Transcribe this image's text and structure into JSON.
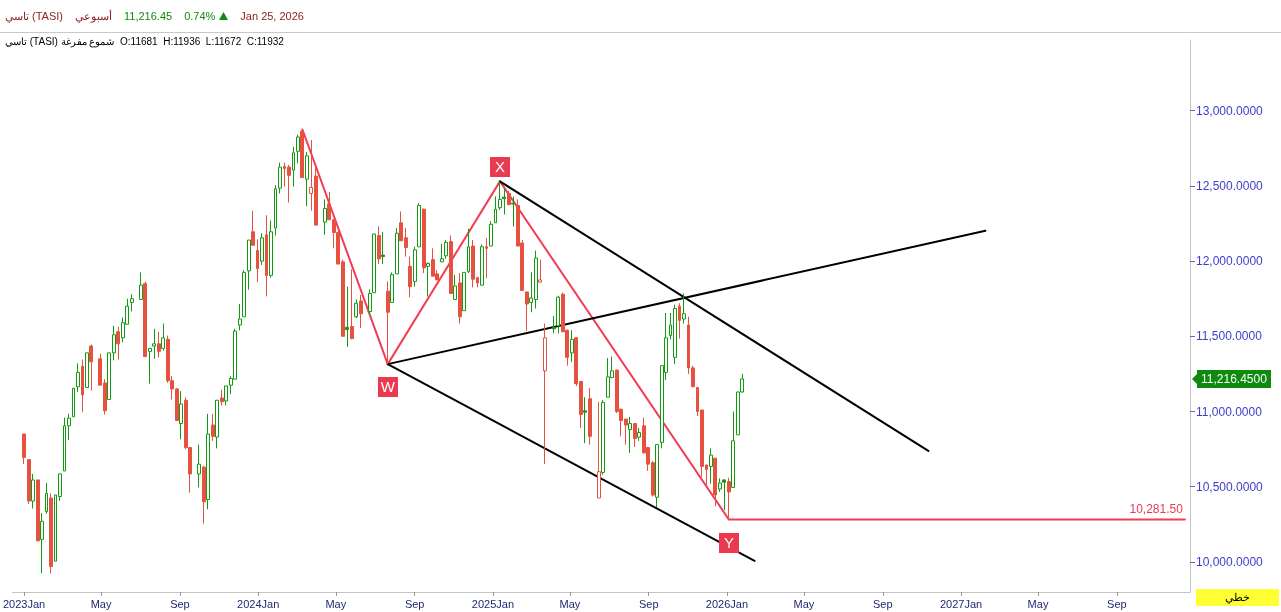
{
  "chart_data": {
    "type": "candlestick",
    "title": "تاسي (TASI)",
    "subtitle": "تاسي (TASI) شموع مفرغة  O:11681  H:11936  L:11672  C:11932",
    "annotations": [
      "أسبوعي",
      "11,216.45",
      "0.74%",
      "Jan 25, 2026",
      "خطي",
      "11,216.4500",
      {
        "text": "W",
        "x": "2024-07-21",
        "y": 11315
      },
      {
        "text": "X",
        "x": "2025-01-12",
        "y": 12530
      },
      {
        "text": "Y",
        "x": "2026-01-04",
        "y": 10281.5
      },
      {
        "text": "10,281.50",
        "x": "2027-12-16",
        "y": 10281.5
      }
    ],
    "series": [
      {
        "color": "#129a12",
        "x": [
          "2023-01-15",
          "2023-01-29",
          "2023-02-05",
          "2023-02-19",
          "2023-02-26",
          "2023-03-05",
          "2023-03-12",
          "2023-03-19",
          "2023-03-26",
          "2023-04-09",
          "2023-05-14",
          "2023-05-21",
          "2023-06-04",
          "2023-06-11",
          "2023-06-18",
          "2023-07-02",
          "2023-07-16",
          "2023-07-23",
          "2023-08-06",
          "2023-09-03",
          "2023-10-01",
          "2023-10-15",
          "2023-10-29",
          "2023-11-12",
          "2023-11-19",
          "2023-11-26",
          "2023-12-03",
          "2023-12-10",
          "2023-12-17",
          "2024-01-07",
          "2024-01-21",
          "2024-01-28",
          "2024-02-04",
          "2024-02-25",
          "2024-03-03",
          "2024-03-17",
          "2024-04-14",
          "2024-05-19",
          "2024-06-02",
          "2024-06-23",
          "2024-06-30",
          "2024-07-14",
          "2024-07-28",
          "2024-08-04",
          "2024-09-01",
          "2024-09-08",
          "2024-09-22",
          "2024-10-13",
          "2024-10-20",
          "2024-11-03",
          "2024-11-17",
          "2024-11-24",
          "2024-12-15",
          "2024-12-29",
          "2025-01-05",
          "2025-01-12",
          "2025-01-19",
          "2025-02-02",
          "2025-03-02",
          "2025-03-09",
          "2025-04-06",
          "2025-04-13",
          "2025-05-04",
          "2025-05-25",
          "2025-06-22",
          "2025-06-29",
          "2025-07-06",
          "2025-08-03",
          "2025-08-17",
          "2025-09-14",
          "2025-09-21",
          "2025-09-28",
          "2025-10-05",
          "2025-10-12",
          "2025-10-26",
          "2025-12-07",
          "2025-12-21",
          "2025-12-28",
          "2026-01-11",
          "2026-01-18",
          "2026-01-25"
        ],
        "ohlc": [
          [
            10405,
            10585,
            10355,
            10545
          ],
          [
            10150,
            10325,
            9925,
            10270
          ],
          [
            10335,
            10525,
            10320,
            10455
          ],
          [
            10005,
            10445,
            10005,
            10445
          ],
          [
            10435,
            10585,
            10405,
            10585
          ],
          [
            10605,
            10960,
            10605,
            10905
          ],
          [
            10905,
            10985,
            10810,
            10955
          ],
          [
            10965,
            11155,
            10965,
            11155
          ],
          [
            11165,
            11320,
            11130,
            11260
          ],
          [
            11160,
            11390,
            11160,
            11390
          ],
          [
            11080,
            11390,
            11080,
            11390
          ],
          [
            11390,
            11570,
            11340,
            11510
          ],
          [
            11490,
            11625,
            11460,
            11590
          ],
          [
            11580,
            11750,
            11580,
            11700
          ],
          [
            11725,
            11780,
            11665,
            11750
          ],
          [
            11745,
            11925,
            11745,
            11840
          ],
          [
            11400,
            11420,
            11185,
            11420
          ],
          [
            11435,
            11550,
            11350,
            11450
          ],
          [
            11420,
            11585,
            11405,
            11490
          ],
          [
            10920,
            11135,
            10815,
            11050
          ],
          [
            10585,
            10780,
            10495,
            10650
          ],
          [
            10415,
            10985,
            10350,
            10850
          ],
          [
            10830,
            11075,
            10755,
            11075
          ],
          [
            11070,
            11170,
            11040,
            11170
          ],
          [
            11175,
            11235,
            11115,
            11220
          ],
          [
            11215,
            11550,
            11215,
            11535
          ],
          [
            11575,
            11715,
            11540,
            11615
          ],
          [
            11630,
            11940,
            11630,
            11925
          ],
          [
            11935,
            12140,
            11810,
            12140
          ],
          [
            12000,
            12185,
            11975,
            12155
          ],
          [
            11905,
            12270,
            11890,
            12195
          ],
          [
            12220,
            12505,
            12170,
            12480
          ],
          [
            12485,
            12655,
            12450,
            12625
          ],
          [
            12605,
            12760,
            12495,
            12720
          ],
          [
            12730,
            12840,
            12650,
            12825
          ],
          [
            12545,
            12725,
            12365,
            12700
          ],
          [
            12260,
            12410,
            12175,
            12350
          ],
          [
            11560,
            11830,
            11430,
            11545
          ],
          [
            11630,
            11745,
            11620,
            11720
          ],
          [
            11665,
            11810,
            11645,
            11785
          ],
          [
            11790,
            12180,
            11790,
            12180
          ],
          [
            12040,
            12195,
            11980,
            12030
          ],
          [
            11725,
            11925,
            11725,
            11910
          ],
          [
            11915,
            12220,
            11915,
            12185
          ],
          [
            11865,
            12095,
            11830,
            12075
          ],
          [
            12095,
            12385,
            12095,
            12370
          ],
          [
            11965,
            11990,
            11765,
            11985
          ],
          [
            11995,
            12115,
            11995,
            12015
          ],
          [
            12035,
            12140,
            12015,
            12125
          ],
          [
            11745,
            11910,
            11745,
            11835
          ],
          [
            11670,
            11925,
            11670,
            11925
          ],
          [
            11930,
            12215,
            11920,
            12095
          ],
          [
            11840,
            12110,
            11840,
            12095
          ],
          [
            12100,
            12265,
            12100,
            12245
          ],
          [
            12255,
            12430,
            12255,
            12345
          ],
          [
            12355,
            12530,
            12340,
            12410
          ],
          [
            12425,
            12485,
            12310,
            12415
          ],
          [
            12385,
            12430,
            12230,
            12380
          ],
          [
            11725,
            11925,
            11660,
            11755
          ],
          [
            11745,
            12070,
            11685,
            12020
          ],
          [
            11560,
            11635,
            11520,
            11550
          ],
          [
            11570,
            11770,
            11520,
            11760
          ],
          [
            11390,
            11540,
            11330,
            11480
          ],
          [
            11005,
            11095,
            10790,
            10995
          ],
          [
            10595,
            11075,
            10580,
            11060
          ],
          [
            11095,
            11355,
            11095,
            11230
          ],
          [
            11225,
            11365,
            11225,
            11270
          ],
          [
            10880,
            10965,
            10725,
            10920
          ],
          [
            10830,
            10890,
            10805,
            10860
          ],
          [
            10430,
            10780,
            10365,
            10780
          ],
          [
            10795,
            11305,
            10755,
            11305
          ],
          [
            11260,
            11655,
            11210,
            11490
          ],
          [
            11505,
            11655,
            11480,
            11575
          ],
          [
            11360,
            11710,
            11315,
            11685
          ],
          [
            11615,
            11785,
            11585,
            11650
          ],
          [
            10635,
            10755,
            10520,
            10710
          ],
          [
            10485,
            10555,
            10465,
            10525
          ],
          [
            10545,
            10550,
            10345,
            10530
          ],
          [
            10495,
            11000,
            10495,
            10805
          ],
          [
            10845,
            11130,
            10845,
            11130
          ],
          [
            11130,
            11250,
            11125,
            11216.45
          ]
        ]
      },
      {
        "color": "#e6523f",
        "x": [
          "2023-01-01",
          "2023-01-08",
          "2023-01-22",
          "2023-02-12",
          "2023-04-02",
          "2023-04-16",
          "2023-04-30",
          "2023-05-07",
          "2023-05-28",
          "2023-07-09",
          "2023-07-30",
          "2023-08-13",
          "2023-08-20",
          "2023-08-27",
          "2023-09-10",
          "2023-09-17",
          "2023-10-08",
          "2023-10-22",
          "2023-11-05",
          "2023-12-24",
          "2023-12-31",
          "2024-01-14",
          "2024-02-11",
          "2024-02-18",
          "2024-03-10",
          "2024-03-24",
          "2024-03-31",
          "2024-04-21",
          "2024-04-28",
          "2024-05-05",
          "2024-05-12",
          "2024-05-26",
          "2024-06-09",
          "2024-07-07",
          "2024-07-21",
          "2024-08-11",
          "2024-08-18",
          "2024-08-25",
          "2024-09-15",
          "2024-09-29",
          "2024-10-06",
          "2024-10-27",
          "2024-11-10",
          "2024-12-01",
          "2024-12-08",
          "2024-12-22",
          "2025-01-26",
          "2025-02-09",
          "2025-02-16",
          "2025-02-23",
          "2025-03-16",
          "2025-03-23",
          "2025-04-20",
          "2025-04-27",
          "2025-05-11",
          "2025-05-18",
          "2025-06-01",
          "2025-06-15",
          "2025-07-13",
          "2025-07-20",
          "2025-07-27",
          "2025-08-10",
          "2025-08-24",
          "2025-08-31",
          "2025-09-07",
          "2025-10-19",
          "2025-11-02",
          "2025-11-09",
          "2025-11-16",
          "2025-11-23",
          "2025-11-30",
          "2025-12-14",
          "2026-01-04"
        ],
        "ohlc": [
          [
            10850,
            10850,
            10650,
            10695
          ],
          [
            10680,
            10680,
            10385,
            10405
          ],
          [
            10545,
            10545,
            10140,
            10140
          ],
          [
            10425,
            10455,
            9925,
            9970
          ],
          [
            11300,
            11345,
            10995,
            11110
          ],
          [
            11435,
            11445,
            11140,
            11330
          ],
          [
            11350,
            11385,
            11175,
            11175
          ],
          [
            11190,
            11215,
            10980,
            11005
          ],
          [
            11530,
            11565,
            11345,
            11450
          ],
          [
            11850,
            11865,
            11365,
            11365
          ],
          [
            11450,
            11530,
            11360,
            11400
          ],
          [
            11480,
            11505,
            11190,
            11205
          ],
          [
            11205,
            11235,
            11080,
            11150
          ],
          [
            11150,
            11155,
            10940,
            10940
          ],
          [
            11075,
            11095,
            10750,
            10760
          ],
          [
            10760,
            10765,
            10460,
            10585
          ],
          [
            10630,
            10640,
            10255,
            10400
          ],
          [
            10910,
            10985,
            10805,
            10835
          ],
          [
            11090,
            11145,
            11040,
            11065
          ],
          [
            12195,
            12335,
            12105,
            12105
          ],
          [
            12070,
            12145,
            11860,
            11950
          ],
          [
            12175,
            12305,
            11765,
            11905
          ],
          [
            12630,
            12655,
            12495,
            12615
          ],
          [
            12625,
            12640,
            12390,
            12570
          ],
          [
            12865,
            12875,
            12555,
            12555
          ],
          [
            12450,
            12805,
            12335,
            12490
          ],
          [
            12565,
            12630,
            12235,
            12240
          ],
          [
            12380,
            12460,
            12275,
            12275
          ],
          [
            12275,
            12280,
            12085,
            12190
          ],
          [
            12190,
            12200,
            11980,
            11980
          ],
          [
            11995,
            12010,
            11500,
            11500
          ],
          [
            11565,
            11945,
            11480,
            11485
          ],
          [
            11735,
            11775,
            11555,
            11650
          ],
          [
            12170,
            12230,
            11980,
            12015
          ],
          [
            11800,
            11865,
            11315,
            11660
          ],
          [
            12255,
            12330,
            12135,
            12135
          ],
          [
            12155,
            12220,
            12030,
            12090
          ],
          [
            11965,
            12030,
            11760,
            11830
          ],
          [
            12345,
            12350,
            11920,
            11955
          ],
          [
            12010,
            12085,
            11900,
            11900
          ],
          [
            11915,
            11940,
            11875,
            11875
          ],
          [
            12130,
            12170,
            11785,
            11785
          ],
          [
            11855,
            11920,
            11585,
            11630
          ],
          [
            12100,
            12140,
            11825,
            11880
          ],
          [
            11890,
            11895,
            11825,
            11855
          ],
          [
            12095,
            12155,
            11885,
            12085
          ],
          [
            12450,
            12465,
            12375,
            12375
          ],
          [
            12370,
            12410,
            12100,
            12100
          ],
          [
            12120,
            12140,
            11805,
            11805
          ],
          [
            11795,
            11795,
            11535,
            11715
          ],
          [
            11860,
            12010,
            11860,
            11875
          ],
          [
            11270,
            11585,
            10650,
            11490
          ],
          [
            11780,
            11790,
            11530,
            11530
          ],
          [
            11540,
            11545,
            11305,
            11360
          ],
          [
            11490,
            11495,
            11170,
            11185
          ],
          [
            11200,
            11200,
            10890,
            10980
          ],
          [
            11085,
            11155,
            10780,
            10835
          ],
          [
            10425,
            11065,
            10425,
            10600
          ],
          [
            11275,
            11280,
            10990,
            11000
          ],
          [
            11015,
            11020,
            10835,
            10940
          ],
          [
            10950,
            10950,
            10780,
            10910
          ],
          [
            10920,
            10920,
            10765,
            10820
          ],
          [
            10905,
            10960,
            10720,
            10725
          ],
          [
            10760,
            10765,
            10605,
            10650
          ],
          [
            10660,
            10670,
            10435,
            10445
          ],
          [
            11700,
            11720,
            11485,
            11605
          ],
          [
            11575,
            11630,
            11250,
            11290
          ],
          [
            11290,
            11305,
            11165,
            11165
          ],
          [
            11160,
            11160,
            10970,
            11000
          ],
          [
            11010,
            11010,
            10565,
            10635
          ],
          [
            10645,
            10645,
            10510,
            10615
          ],
          [
            10690,
            10690,
            10370,
            10445
          ],
          [
            10535,
            10560,
            10281.5,
            10465
          ]
        ]
      },
      {
        "type": "line",
        "color": "#f23d55",
        "x": [
          "2024-03-10",
          "2024-07-21",
          "2025-01-12",
          "2026-01-04",
          "2027-12-16"
        ],
        "values": [
          12875,
          11315,
          12530,
          10281.5,
          10281.5
        ]
      },
      {
        "type": "line",
        "color": "#000000",
        "x": [
          "2024-07-21",
          "2027-02-08"
        ],
        "values": [
          11315,
          12202
        ]
      },
      {
        "type": "line",
        "color": "#000000",
        "x": [
          "2024-07-21",
          "2026-02-13"
        ],
        "values": [
          11315,
          10007
        ]
      },
      {
        "type": "line",
        "color": "#000000",
        "x": [
          "2025-01-12",
          "2026-11-11"
        ],
        "values": [
          12530,
          10738
        ]
      }
    ],
    "xlim": [
      "2022-12-14",
      "2027-12-24"
    ],
    "xticks": [
      {
        "value": "2023-01",
        "label": "2023Jan"
      },
      {
        "value": "2023-05",
        "label": "May"
      },
      {
        "value": "2023-09",
        "label": "Sep"
      },
      {
        "value": "2024-01",
        "label": "2024Jan"
      },
      {
        "value": "2024-05",
        "label": "May"
      },
      {
        "value": "2024-09",
        "label": "Sep"
      },
      {
        "value": "2025-01",
        "label": "2025Jan"
      },
      {
        "value": "2025-05",
        "label": "May"
      },
      {
        "value": "2025-09",
        "label": "Sep"
      },
      {
        "value": "2026-01",
        "label": "2026Jan"
      },
      {
        "value": "2026-05",
        "label": "May"
      },
      {
        "value": "2026-09",
        "label": "Sep"
      },
      {
        "value": "2027-01",
        "label": "2027Jan"
      },
      {
        "value": "2027-05",
        "label": "May"
      },
      {
        "value": "2027-09",
        "label": "Sep"
      }
    ],
    "ylim": [
      9800,
      13470
    ],
    "yticks": [
      {
        "value": 10000,
        "label": "10,000.0000"
      },
      {
        "value": 10500,
        "label": "10,500.0000"
      },
      {
        "value": 11000,
        "label": "11,000.0000"
      },
      {
        "value": 11500,
        "label": "11,500.0000"
      },
      {
        "value": 12000,
        "label": "12,000.0000"
      },
      {
        "value": 12500,
        "label": "12,500.0000"
      },
      {
        "value": 13000,
        "label": "13,000.0000"
      }
    ],
    "marker": "none"
  }
}
